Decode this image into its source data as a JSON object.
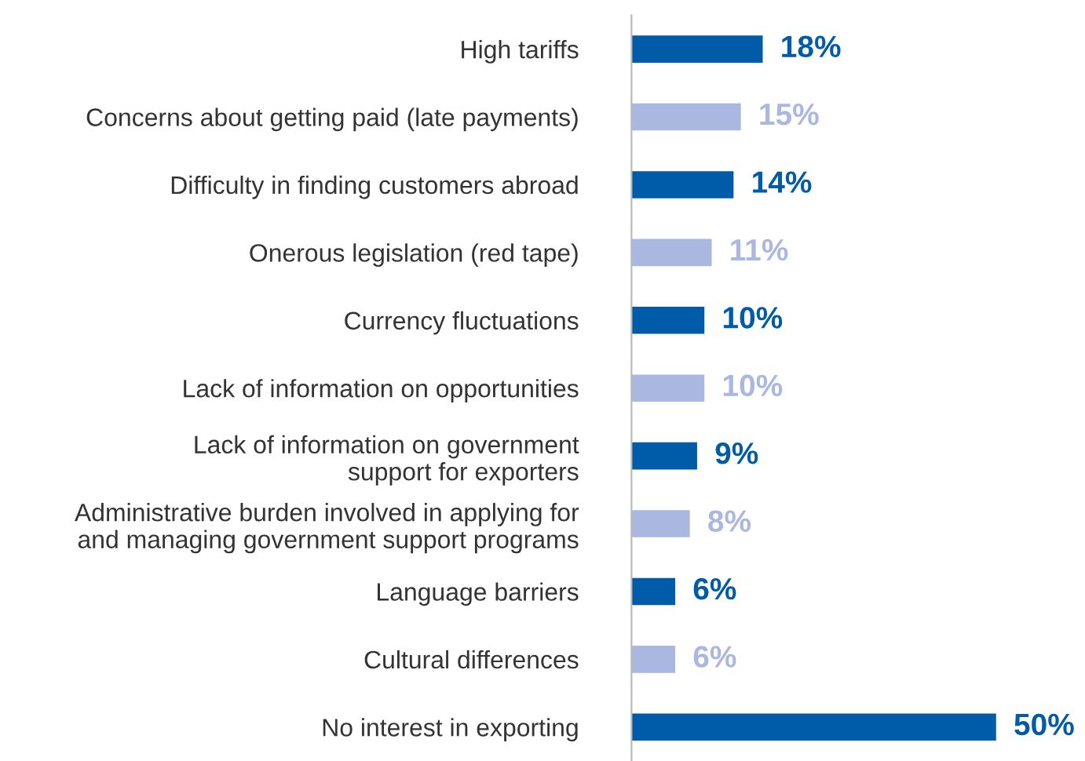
{
  "chart_data": {
    "type": "bar",
    "orientation": "horizontal",
    "categories": [
      "High tariffs",
      "Concerns about getting paid (late payments)",
      "Difficulty in finding customers abroad",
      "Onerous legislation (red tape)",
      "Currency fluctuations",
      "Lack of information on opportunities",
      "Lack of information on government\nsupport for exporters",
      "Administrative burden involved in applying for\nand managing government support programs",
      "Language barriers",
      "Cultural differences",
      "No interest in exporting"
    ],
    "values": [
      18,
      15,
      14,
      11,
      10,
      10,
      9,
      8,
      6,
      6,
      50
    ],
    "value_labels": [
      "18%",
      "15%",
      "14%",
      "11%",
      "10%",
      "10%",
      "9%",
      "8%",
      "6%",
      "6%",
      "50%"
    ],
    "colors": [
      "#005ba8",
      "#a9b7e1",
      "#005ba8",
      "#a9b7e1",
      "#005ba8",
      "#a9b7e1",
      "#005ba8",
      "#a9b7e1",
      "#005ba8",
      "#a9b7e1",
      "#005ba8"
    ],
    "grid": false,
    "legend": false
  }
}
